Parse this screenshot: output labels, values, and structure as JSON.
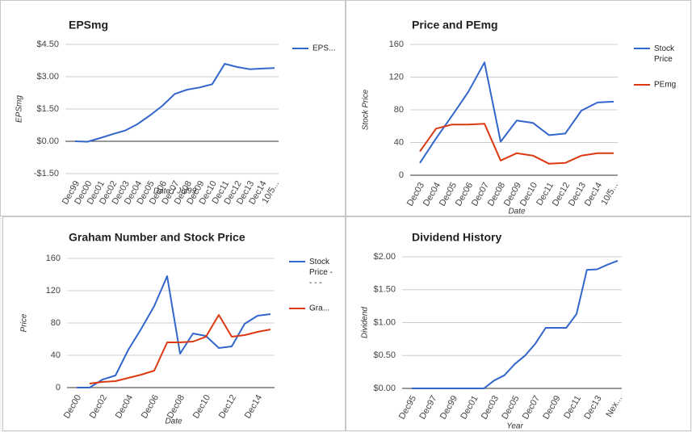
{
  "chart_data": [
    {
      "type": "line",
      "title": "EPSmg",
      "y_label": "EPSmg",
      "x_label": "Date / Jul99",
      "categories": [
        "Dec99",
        "Dec00",
        "Dec01",
        "Dec02",
        "Dec03",
        "Dec04",
        "Dec05",
        "Dec06",
        "Dec07",
        "Dec08",
        "Dec09",
        "Dec10",
        "Dec11",
        "Dec12",
        "Dec13",
        "Dec14",
        "10/5..."
      ],
      "series": [
        {
          "name": "EPS...",
          "color": "#3366cc",
          "values": [
            0.0,
            -0.02,
            0.15,
            0.33,
            0.5,
            0.8,
            1.2,
            1.65,
            2.2,
            2.4,
            2.5,
            2.65,
            3.6,
            3.45,
            3.35,
            3.38,
            3.4
          ]
        }
      ],
      "ylim": [
        -1.5,
        4.5
      ],
      "yticks": [
        {
          "value": 4.5,
          "label": "$4.50"
        },
        {
          "value": 3,
          "label": "$3.00"
        },
        {
          "value": 1.5,
          "label": "$1.50"
        },
        {
          "value": 0,
          "label": "$0.00"
        },
        {
          "value": -1.5,
          "label": "-$1.50"
        }
      ],
      "grid": true,
      "legend": "right"
    },
    {
      "type": "line",
      "title": "Price and PEmg",
      "y_label": "Stock Price",
      "x_label": "Date",
      "categories": [
        "Dec03",
        "Dec04",
        "Dec05",
        "Dec06",
        "Dec07",
        "Dec08",
        "Dec09",
        "Dec10",
        "Dec11",
        "Dec12",
        "Dec13",
        "Dec14",
        "10/5..."
      ],
      "series": [
        {
          "name": "Stock Price",
          "color": "#3366cc",
          "values": [
            15,
            45,
            73,
            102,
            138,
            41,
            67,
            64,
            49,
            51,
            79,
            89,
            90
          ]
        },
        {
          "name": "PEmg",
          "color": "#dc3912",
          "values": [
            29,
            57,
            62,
            62,
            63,
            18,
            27,
            24,
            14,
            15,
            24,
            27,
            27
          ]
        }
      ],
      "ylim": [
        0,
        160
      ],
      "yticks": [
        0,
        40,
        80,
        120,
        160
      ],
      "grid": true,
      "legend": "right"
    },
    {
      "type": "line",
      "title": "Graham Number and Stock Price",
      "y_label": "Price",
      "x_label": "Date",
      "categories": [
        "Dec00",
        null,
        "Dec02",
        null,
        "Dec04",
        null,
        "Dec06",
        null,
        "Dec08",
        null,
        "Dec10",
        null,
        "Dec12",
        null,
        "Dec14",
        null
      ],
      "series": [
        {
          "name": "Stock Price - - - -",
          "color": "#3366cc",
          "values": [
            0,
            0,
            10,
            15,
            47,
            73,
            101,
            138,
            42,
            67,
            64,
            49,
            51,
            79,
            89,
            91
          ]
        },
        {
          "name": "Gra...",
          "color": "#dc3912",
          "values": [
            null,
            5,
            7,
            8,
            12,
            16,
            21,
            56,
            56,
            57,
            63,
            90,
            63,
            65,
            69,
            72
          ]
        }
      ],
      "ylim": [
        0,
        160
      ],
      "yticks": [
        0,
        40,
        80,
        120,
        160
      ],
      "grid": true,
      "legend": "right"
    },
    {
      "type": "line",
      "title": "Dividend History",
      "y_label": "Dividend",
      "x_label": "Year",
      "categories": [
        "Dec95",
        null,
        "Dec97",
        null,
        "Dec99",
        null,
        "Dec01",
        null,
        "Dec03",
        null,
        "Dec05",
        null,
        "Dec07",
        null,
        "Dec09",
        null,
        "Dec11",
        null,
        "Dec13",
        null,
        "Nex..."
      ],
      "color": "#3366cc",
      "values": [
        0,
        0,
        0,
        0,
        0,
        0,
        0,
        0,
        0.12,
        0.2,
        0.37,
        0.5,
        0.68,
        0.92,
        0.92,
        0.92,
        1.13,
        1.8,
        1.81,
        1.88,
        1.94
      ],
      "ylim": [
        0,
        2
      ],
      "yticks": [
        {
          "value": 0,
          "label": "$0.00"
        },
        {
          "value": 0.5,
          "label": "$0.50"
        },
        {
          "value": 1,
          "label": "$1.00"
        },
        {
          "value": 1.5,
          "label": "$1.50"
        },
        {
          "value": 2,
          "label": "$2.00"
        }
      ],
      "grid": true,
      "legend": "none"
    }
  ]
}
